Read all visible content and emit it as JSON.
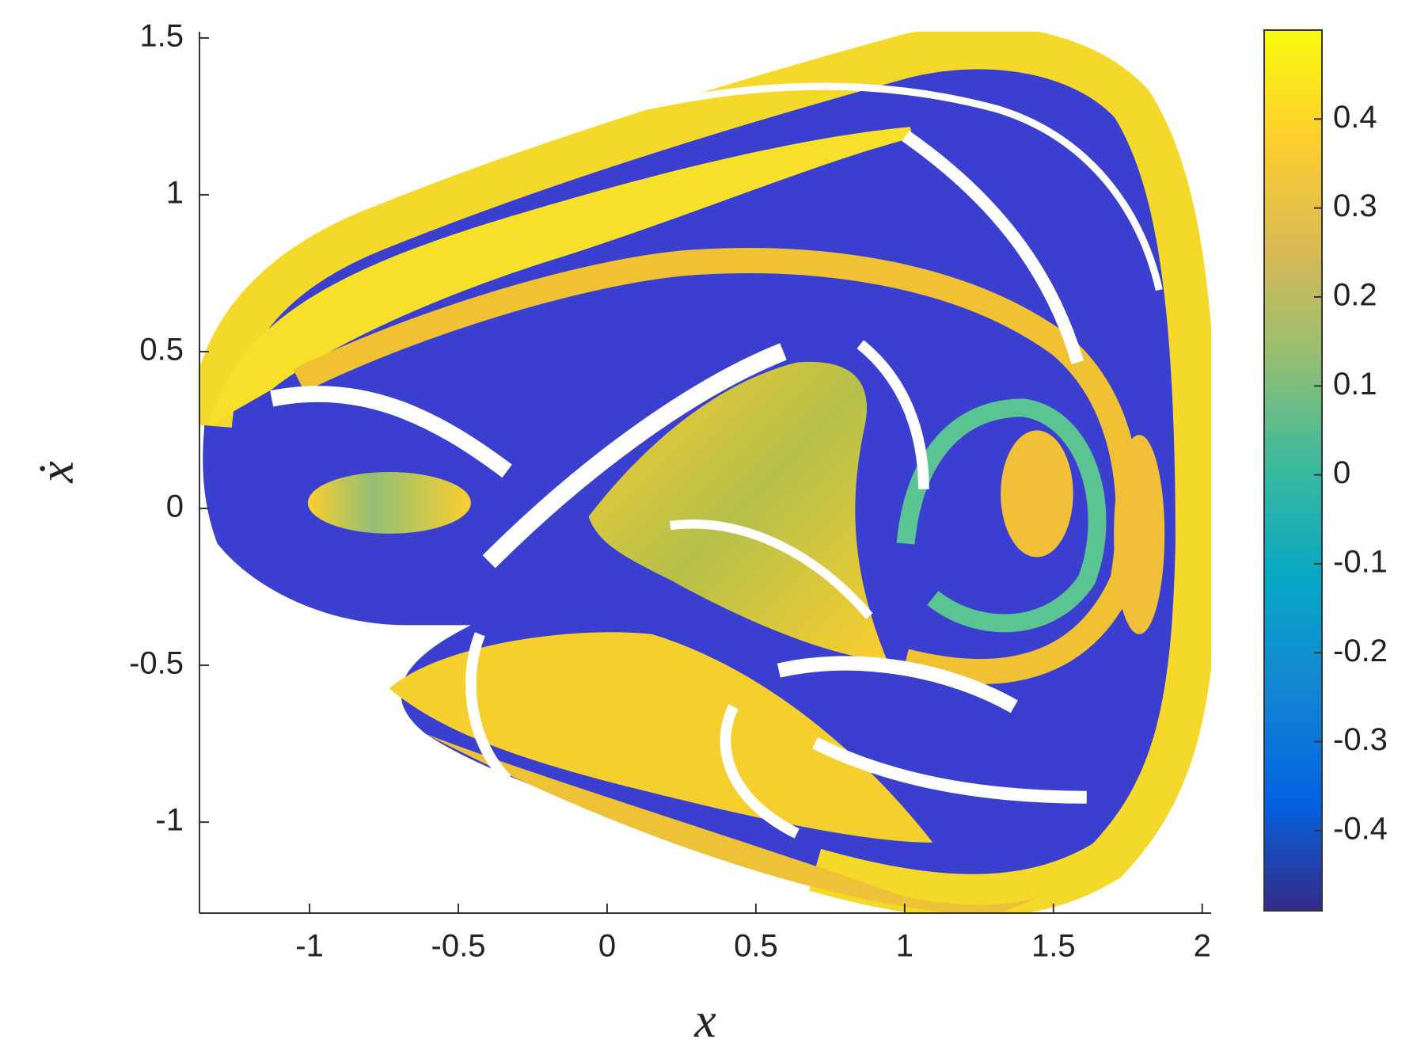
{
  "chart_data": {
    "type": "heatmap",
    "xlabel": "x",
    "ylabel": "ẋ",
    "xlim": [
      -1.37,
      2.03
    ],
    "ylim": [
      -1.29,
      1.52
    ],
    "xticks": [
      -1,
      -0.5,
      0,
      0.5,
      1,
      1.5,
      2
    ],
    "yticks": [
      -1,
      -0.5,
      0,
      0.5,
      1,
      1.5
    ],
    "clim": [
      -0.49,
      0.5
    ],
    "cticks": [
      -0.4,
      -0.3,
      -0.2,
      -0.1,
      0,
      0.1,
      0.2,
      0.3,
      0.4
    ],
    "colormap": [
      "#352a87",
      "#0363e1",
      "#1485d4",
      "#06a7c6",
      "#38b99e",
      "#92bf73",
      "#d9ba56",
      "#fcce2e",
      "#f9fb0e"
    ]
  }
}
